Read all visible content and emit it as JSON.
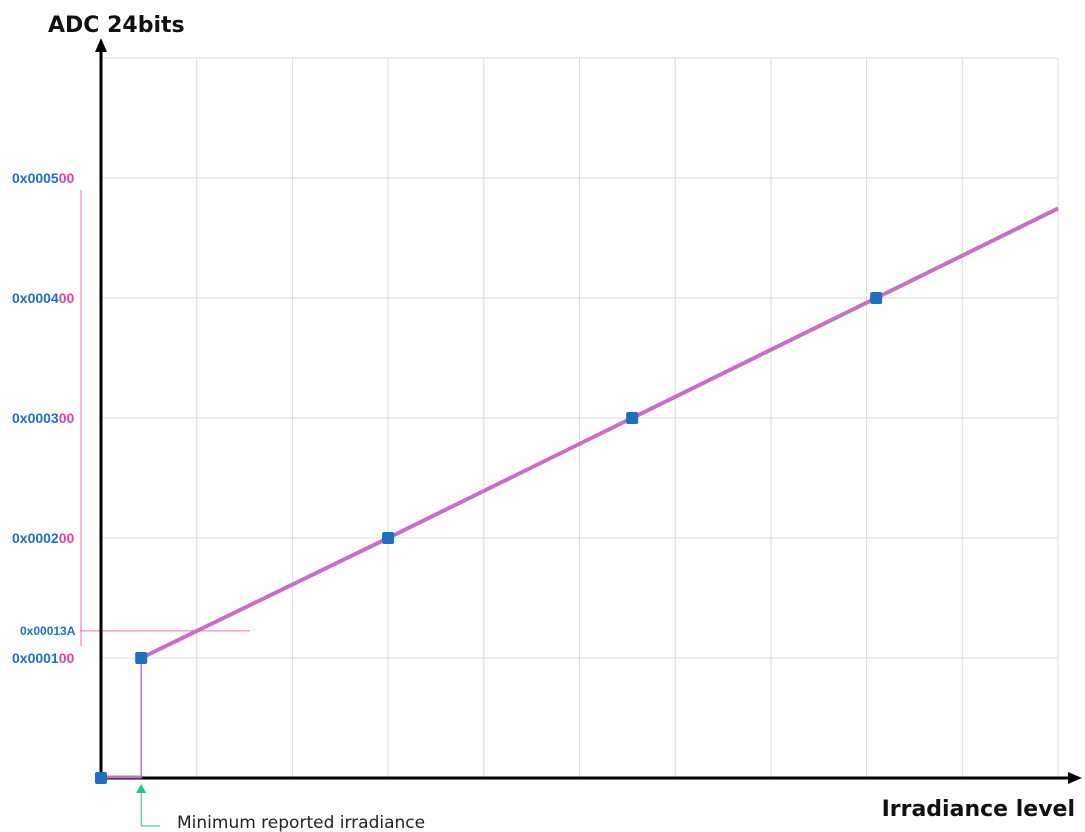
{
  "chart_data": {
    "type": "line",
    "title": "",
    "ylabel": "ADC 24bits",
    "xlabel": "Irradiance level",
    "x_tick_labels": [],
    "y_ticks": [
      {
        "value": 256,
        "label": "0x000100",
        "label_prefix": "0x0001",
        "label_suffix": "00"
      },
      {
        "value": 512,
        "label": "0x000200",
        "label_prefix": "0x0002",
        "label_suffix": "00"
      },
      {
        "value": 768,
        "label": "0x000300",
        "label_prefix": "0x0003",
        "label_suffix": "00"
      },
      {
        "value": 1024,
        "label": "0x000400",
        "label_prefix": "0x0004",
        "label_suffix": "00"
      },
      {
        "value": 1280,
        "label": "0x000500",
        "label_prefix": "0x0005",
        "label_suffix": "00"
      }
    ],
    "ylim": [
      0,
      1536
    ],
    "xlim": [
      0,
      10
    ],
    "grid": true,
    "series": [
      {
        "line_color": "#c86dc8",
        "marker_color": "#1f6fbf",
        "points": [
          {
            "x": 0,
            "y": 0,
            "marker": true
          },
          {
            "x": 0.42,
            "y": 0,
            "marker": false
          },
          {
            "x": 0.42,
            "y": 256,
            "marker": true
          },
          {
            "x": 3.0,
            "y": 512,
            "marker": true
          },
          {
            "x": 5.55,
            "y": 768,
            "marker": true
          },
          {
            "x": 8.1,
            "y": 1024,
            "marker": true
          },
          {
            "x": 10.0,
            "y": 1215,
            "marker": false
          }
        ]
      }
    ],
    "annotations": [
      {
        "type": "threshold",
        "value": 314,
        "label": "0x00013A"
      },
      {
        "type": "marker",
        "x": 0.42,
        "label": "Minimum reported irradiance"
      }
    ],
    "colors": {
      "axis": "#000000",
      "grid": "#dcdcdc",
      "tick_label_prefix": "#1f6fbf",
      "tick_label_suffix": "#e8409e",
      "bracket": "#f06cb8",
      "annotation_arrow": "#2bbf8f"
    }
  }
}
